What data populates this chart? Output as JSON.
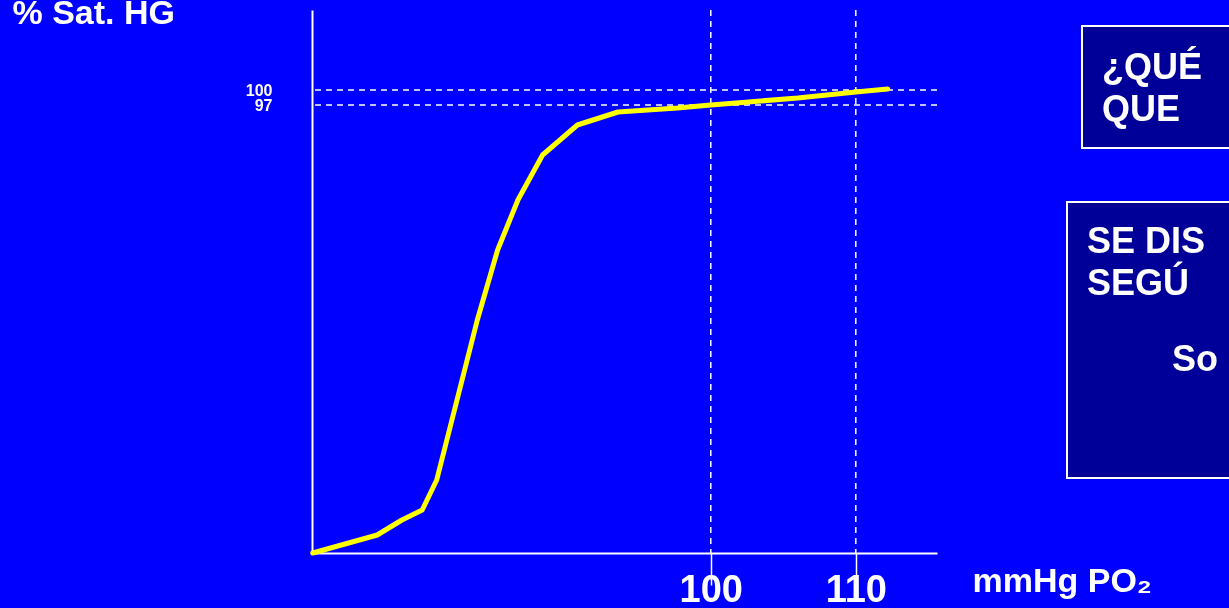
{
  "chart_data": {
    "type": "line",
    "xlabel": "mmHg PO₂",
    "ylabel": "% Sat. HG",
    "x": [
      72.55,
      77.0,
      78.7,
      80.1,
      81.1,
      82.5,
      83.9,
      85.3,
      86.7,
      88.4,
      90.8,
      93.6,
      97.7,
      100,
      106,
      110,
      112.2
    ],
    "series": [
      {
        "color": "#ffff00",
        "values": [
          7.4,
          11.0,
          14.0,
          16.0,
          22.0,
          38.0,
          54.0,
          68.0,
          78.0,
          87.0,
          93.0,
          95.6,
          96.4,
          97.0,
          98.4,
          99.6,
          100.2
        ]
      }
    ],
    "xlim": [
      72.5,
      115.6
    ],
    "ylim": [
      7.4,
      116
    ],
    "xticks": [
      100,
      110
    ],
    "yticks": [
      100,
      97
    ],
    "ref_lines": [
      {
        "axis": "y",
        "value": 100,
        "color": "#ffffff",
        "line_style": "dashed"
      },
      {
        "axis": "y",
        "value": 97,
        "color": "#ffffff",
        "line_style": "dashed"
      },
      {
        "axis": "x",
        "value": 100,
        "color": "#ffffff",
        "line_style": "dashed"
      },
      {
        "axis": "x",
        "value": 110,
        "color": "#ffffff",
        "line_style": "dashed"
      }
    ],
    "annotations": [
      "¿QUÉ",
      "QUE",
      "SE DIS",
      "SEGÚ",
      "So"
    ],
    "grid": false,
    "marker": "none",
    "line_style": "solid"
  }
}
